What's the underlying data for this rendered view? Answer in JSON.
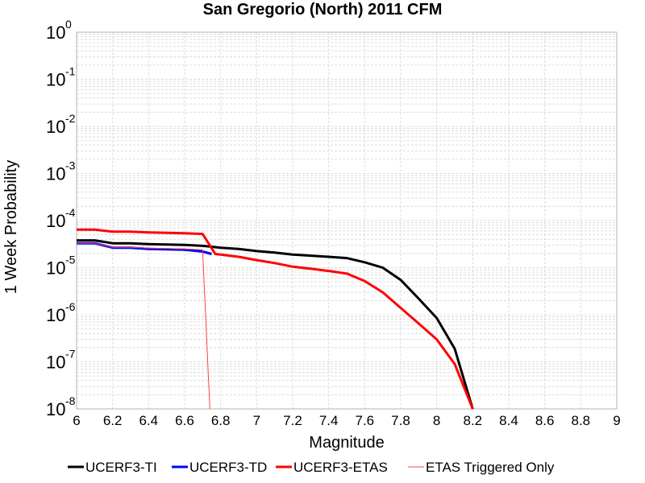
{
  "chart_data": {
    "type": "line",
    "title": "San Gregorio (North) 2011 CFM",
    "xlabel": "Magnitude",
    "ylabel": "1 Week Probability",
    "xlim": [
      6,
      9
    ],
    "ylim": [
      1e-08,
      1
    ],
    "yscale": "log",
    "grid": true,
    "legend_position": "bottom",
    "x_ticks": [
      "6",
      "6.2",
      "6.4",
      "6.6",
      "6.8",
      "7",
      "7.2",
      "7.4",
      "7.6",
      "7.8",
      "8",
      "8.2",
      "8.4",
      "8.6",
      "8.8",
      "9"
    ],
    "y_ticks": [
      {
        "base": "10",
        "exp": "0"
      },
      {
        "base": "10",
        "exp": "-1"
      },
      {
        "base": "10",
        "exp": "-2"
      },
      {
        "base": "10",
        "exp": "-3"
      },
      {
        "base": "10",
        "exp": "-4"
      },
      {
        "base": "10",
        "exp": "-5"
      },
      {
        "base": "10",
        "exp": "-6"
      },
      {
        "base": "10",
        "exp": "-7"
      },
      {
        "base": "10",
        "exp": "-8"
      }
    ],
    "series": [
      {
        "name": "UCERF3-TI",
        "color": "#000000",
        "width": 3,
        "points": [
          [
            6.0,
            3.8e-05
          ],
          [
            6.1,
            3.8e-05
          ],
          [
            6.2,
            3.3e-05
          ],
          [
            6.3,
            3.3e-05
          ],
          [
            6.4,
            3.15e-05
          ],
          [
            6.5,
            3.1e-05
          ],
          [
            6.6,
            3.05e-05
          ],
          [
            6.7,
            2.9e-05
          ],
          [
            6.8,
            2.65e-05
          ],
          [
            6.9,
            2.5e-05
          ],
          [
            7.0,
            2.25e-05
          ],
          [
            7.1,
            2.1e-05
          ],
          [
            7.2,
            1.9e-05
          ],
          [
            7.3,
            1.8e-05
          ],
          [
            7.4,
            1.7e-05
          ],
          [
            7.5,
            1.6e-05
          ],
          [
            7.6,
            1.3e-05
          ],
          [
            7.7,
            1e-05
          ],
          [
            7.8,
            5.5e-06
          ],
          [
            7.9,
            2.2e-06
          ],
          [
            8.0,
            8.5e-07
          ],
          [
            8.1,
            1.9e-07
          ],
          [
            8.2,
            8e-09
          ]
        ]
      },
      {
        "name": "UCERF3-TD",
        "color": "#0000ff",
        "width": 3,
        "points": [
          [
            6.0,
            3.3e-05
          ],
          [
            6.1,
            3.3e-05
          ],
          [
            6.2,
            2.65e-05
          ],
          [
            6.3,
            2.65e-05
          ],
          [
            6.4,
            2.5e-05
          ],
          [
            6.5,
            2.45e-05
          ],
          [
            6.6,
            2.4e-05
          ],
          [
            6.7,
            2.2e-05
          ],
          [
            6.75,
            1.95e-05
          ]
        ]
      },
      {
        "name": "UCERF3-ETAS",
        "color": "#ff0000",
        "width": 3,
        "points": [
          [
            6.0,
            6.4e-05
          ],
          [
            6.1,
            6.4e-05
          ],
          [
            6.2,
            5.8e-05
          ],
          [
            6.3,
            5.8e-05
          ],
          [
            6.4,
            5.6e-05
          ],
          [
            6.5,
            5.5e-05
          ],
          [
            6.6,
            5.4e-05
          ],
          [
            6.7,
            5.2e-05
          ],
          [
            6.77,
            1.95e-05
          ],
          [
            6.8,
            1.9e-05
          ],
          [
            6.9,
            1.7e-05
          ],
          [
            7.0,
            1.45e-05
          ],
          [
            7.1,
            1.25e-05
          ],
          [
            7.2,
            1.05e-05
          ],
          [
            7.3,
            9.5e-06
          ],
          [
            7.4,
            8.5e-06
          ],
          [
            7.5,
            7.5e-06
          ],
          [
            7.6,
            5.2e-06
          ],
          [
            7.7,
            3e-06
          ],
          [
            7.8,
            1.4e-06
          ],
          [
            7.9,
            6.5e-07
          ],
          [
            8.0,
            3e-07
          ],
          [
            8.1,
            9e-08
          ],
          [
            8.2,
            8e-09
          ]
        ]
      },
      {
        "name": "ETAS Triggered Only",
        "color": "#ff4040",
        "width": 1,
        "points": [
          [
            6.0,
            3.3e-05
          ],
          [
            6.1,
            3.3e-05
          ],
          [
            6.2,
            2.7e-05
          ],
          [
            6.3,
            2.7e-05
          ],
          [
            6.4,
            2.6e-05
          ],
          [
            6.5,
            2.55e-05
          ],
          [
            6.6,
            2.5e-05
          ],
          [
            6.7,
            2.4e-05
          ],
          [
            6.74,
            1e-08
          ]
        ]
      }
    ]
  }
}
